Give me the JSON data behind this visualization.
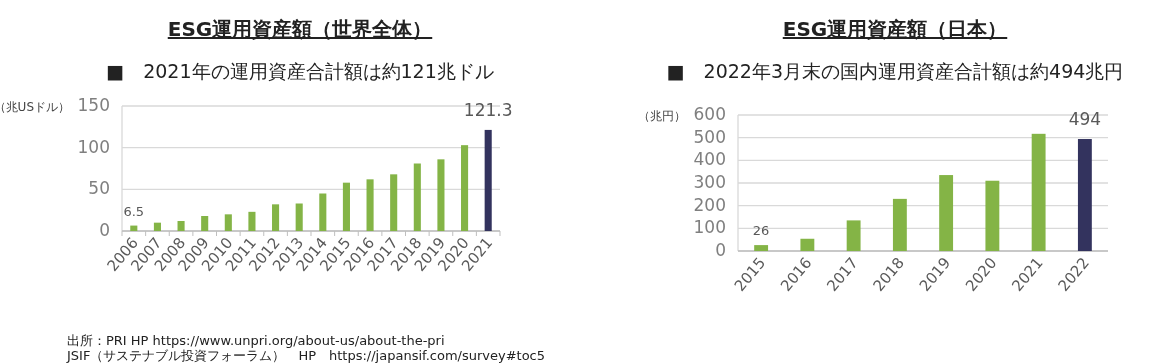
{
  "chart_data": [
    {
      "type": "bar",
      "title": "ESG運用資産額（世界全体）",
      "subtitle": "■　2021年の運用資産合計額は約121兆ドル",
      "ylabel": "（兆USドル）",
      "categories": [
        "2006",
        "2007",
        "2008",
        "2009",
        "2010",
        "2011",
        "2012",
        "2013",
        "2014",
        "2015",
        "2016",
        "2017",
        "2018",
        "2019",
        "2020",
        "2021"
      ],
      "series": [
        {
          "colors": [
            "#84b446",
            "#84b446",
            "#84b446",
            "#84b446",
            "#84b446",
            "#84b446",
            "#84b446",
            "#84b446",
            "#84b446",
            "#84b446",
            "#84b446",
            "#84b446",
            "#84b446",
            "#84b446",
            "#84b446",
            "#33335e"
          ],
          "values": [
            6.5,
            10,
            12,
            18,
            20,
            23,
            32,
            33,
            45,
            58,
            62,
            68,
            81,
            86,
            103,
            121.3
          ],
          "value_labels": [
            "6.5",
            null,
            null,
            null,
            null,
            null,
            null,
            null,
            null,
            null,
            null,
            null,
            null,
            null,
            null,
            "121.3"
          ]
        }
      ],
      "ylim": [
        0,
        150
      ],
      "yticks": [
        0,
        50,
        100,
        150
      ],
      "grid": "y",
      "annotations": [
        "出所：PRI HP https://www.unpri.org/about-us/about-the-pri",
        "JSIF（サステナブル投資フォーラム）　HP　https://japansif.com/survey#toc5"
      ]
    },
    {
      "type": "bar",
      "title": "ESG運用資産額（日本）",
      "subtitle": "■　2022年3月末の国内運用資産合計額は約494兆円",
      "ylabel": "（兆円）",
      "categories": [
        "2015",
        "2016",
        "2017",
        "2018",
        "2019",
        "2020",
        "2021",
        "2022"
      ],
      "series": [
        {
          "colors": [
            "#84b446",
            "#84b446",
            "#84b446",
            "#84b446",
            "#84b446",
            "#84b446",
            "#84b446",
            "#33335e"
          ],
          "values": [
            26,
            54,
            135,
            230,
            335,
            310,
            517,
            494
          ],
          "value_labels": [
            "26",
            null,
            null,
            null,
            null,
            null,
            null,
            "494"
          ]
        }
      ],
      "ylim": [
        0,
        600
      ],
      "yticks": [
        0,
        100,
        200,
        300,
        400,
        500,
        600
      ],
      "grid": "y"
    }
  ]
}
